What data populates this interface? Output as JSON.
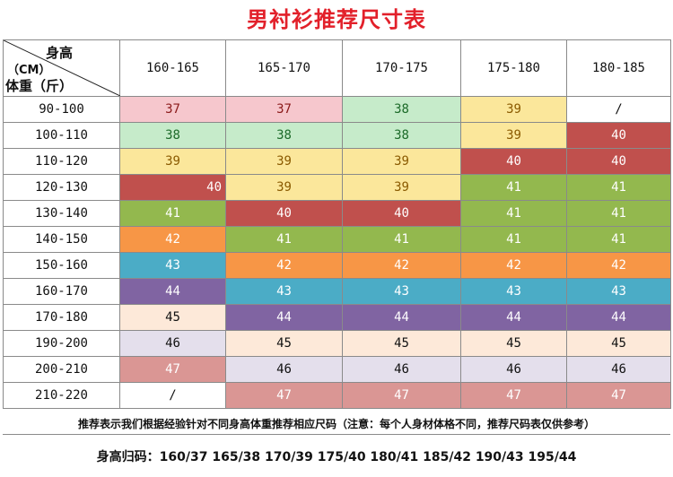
{
  "title": "男衬衫推荐尺寸表",
  "header": {
    "height_label": "身高",
    "unit_label": "（CM）",
    "weight_label": "体重（斤）",
    "columns": [
      "160-165",
      "165-170",
      "170-175",
      "175-180",
      "180-185"
    ]
  },
  "rows": [
    {
      "weight": "90-100",
      "cells": [
        "37",
        "37",
        "38",
        "39",
        "/"
      ]
    },
    {
      "weight": "100-110",
      "cells": [
        "38",
        "38",
        "38",
        "39",
        "40"
      ]
    },
    {
      "weight": "110-120",
      "cells": [
        "39",
        "39",
        "39",
        "40",
        "40"
      ]
    },
    {
      "weight": "120-130",
      "cells": [
        "40",
        "39",
        "39",
        "41",
        "41"
      ]
    },
    {
      "weight": "130-140",
      "cells": [
        "41",
        "40",
        "40",
        "41",
        "41"
      ]
    },
    {
      "weight": "140-150",
      "cells": [
        "42",
        "41",
        "41",
        "41",
        "41"
      ]
    },
    {
      "weight": "150-160",
      "cells": [
        "43",
        "42",
        "42",
        "42",
        "42"
      ]
    },
    {
      "weight": "160-170",
      "cells": [
        "44",
        "43",
        "43",
        "43",
        "43"
      ]
    },
    {
      "weight": "170-180",
      "cells": [
        "45",
        "44",
        "44",
        "44",
        "44"
      ]
    },
    {
      "weight": "190-200",
      "cells": [
        "46",
        "45",
        "45",
        "45",
        "45"
      ]
    },
    {
      "weight": "200-210",
      "cells": [
        "47",
        "46",
        "46",
        "46",
        "46"
      ]
    },
    {
      "weight": "210-220",
      "cells": [
        "/",
        "47",
        "47",
        "47",
        "47"
      ]
    }
  ],
  "note": "推荐表示我们根据经验针对不同身高体重推荐相应尺码（注意：每个人身材体格不同，推荐尺码表仅供参考）",
  "height_codes": "身高归码：160/37 165/38 170/39 175/40 180/41 185/42 190/43 195/44",
  "colors": {
    "title": "#e2202a",
    "37": "#f6c7cd",
    "38": "#c6ebca",
    "39": "#fbe79b",
    "40": "#c0504d",
    "41": "#93b84e",
    "42": "#f79646",
    "43": "#4bacc6",
    "44": "#8064a2",
    "45": "#fde9d9",
    "46": "#e4dfec",
    "47": "#da9694"
  }
}
